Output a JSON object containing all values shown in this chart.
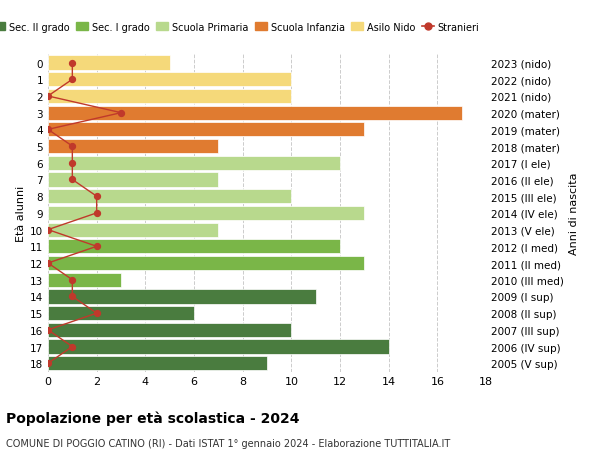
{
  "ages": [
    18,
    17,
    16,
    15,
    14,
    13,
    12,
    11,
    10,
    9,
    8,
    7,
    6,
    5,
    4,
    3,
    2,
    1,
    0
  ],
  "right_labels": [
    "2005 (V sup)",
    "2006 (IV sup)",
    "2007 (III sup)",
    "2008 (II sup)",
    "2009 (I sup)",
    "2010 (III med)",
    "2011 (II med)",
    "2012 (I med)",
    "2013 (V ele)",
    "2014 (IV ele)",
    "2015 (III ele)",
    "2016 (II ele)",
    "2017 (I ele)",
    "2018 (mater)",
    "2019 (mater)",
    "2020 (mater)",
    "2021 (nido)",
    "2022 (nido)",
    "2023 (nido)"
  ],
  "bar_values": [
    9,
    14,
    10,
    6,
    11,
    3,
    13,
    12,
    7,
    13,
    10,
    7,
    12,
    7,
    13,
    17,
    10,
    10,
    5
  ],
  "bar_colors": [
    "#4a7c3f",
    "#4a7c3f",
    "#4a7c3f",
    "#4a7c3f",
    "#4a7c3f",
    "#7ab648",
    "#7ab648",
    "#7ab648",
    "#b8d98d",
    "#b8d98d",
    "#b8d98d",
    "#b8d98d",
    "#b8d98d",
    "#e07b30",
    "#e07b30",
    "#e07b30",
    "#f5d97a",
    "#f5d97a",
    "#f5d97a"
  ],
  "stranieri_values": [
    0,
    1,
    0,
    2,
    1,
    1,
    0,
    2,
    0,
    2,
    2,
    1,
    1,
    1,
    0,
    3,
    0,
    1,
    1
  ],
  "stranieri_color": "#c0392b",
  "legend_items": [
    {
      "label": "Sec. II grado",
      "color": "#4a7c3f",
      "type": "patch"
    },
    {
      "label": "Sec. I grado",
      "color": "#7ab648",
      "type": "patch"
    },
    {
      "label": "Scuola Primaria",
      "color": "#b8d98d",
      "type": "patch"
    },
    {
      "label": "Scuola Infanzia",
      "color": "#e07b30",
      "type": "patch"
    },
    {
      "label": "Asilo Nido",
      "color": "#f5d97a",
      "type": "patch"
    },
    {
      "label": "Stranieri",
      "color": "#c0392b",
      "type": "line"
    }
  ],
  "ylabel_left": "Età alunni",
  "ylabel_right": "Anni di nascita",
  "title": "Popolazione per età scolastica - 2024",
  "subtitle": "COMUNE DI POGGIO CATINO (RI) - Dati ISTAT 1° gennaio 2024 - Elaborazione TUTTITALIA.IT",
  "xlim": [
    0,
    18
  ],
  "xticks": [
    0,
    2,
    4,
    6,
    8,
    10,
    12,
    14,
    16,
    18
  ],
  "background_color": "#ffffff",
  "grid_color": "#cccccc"
}
